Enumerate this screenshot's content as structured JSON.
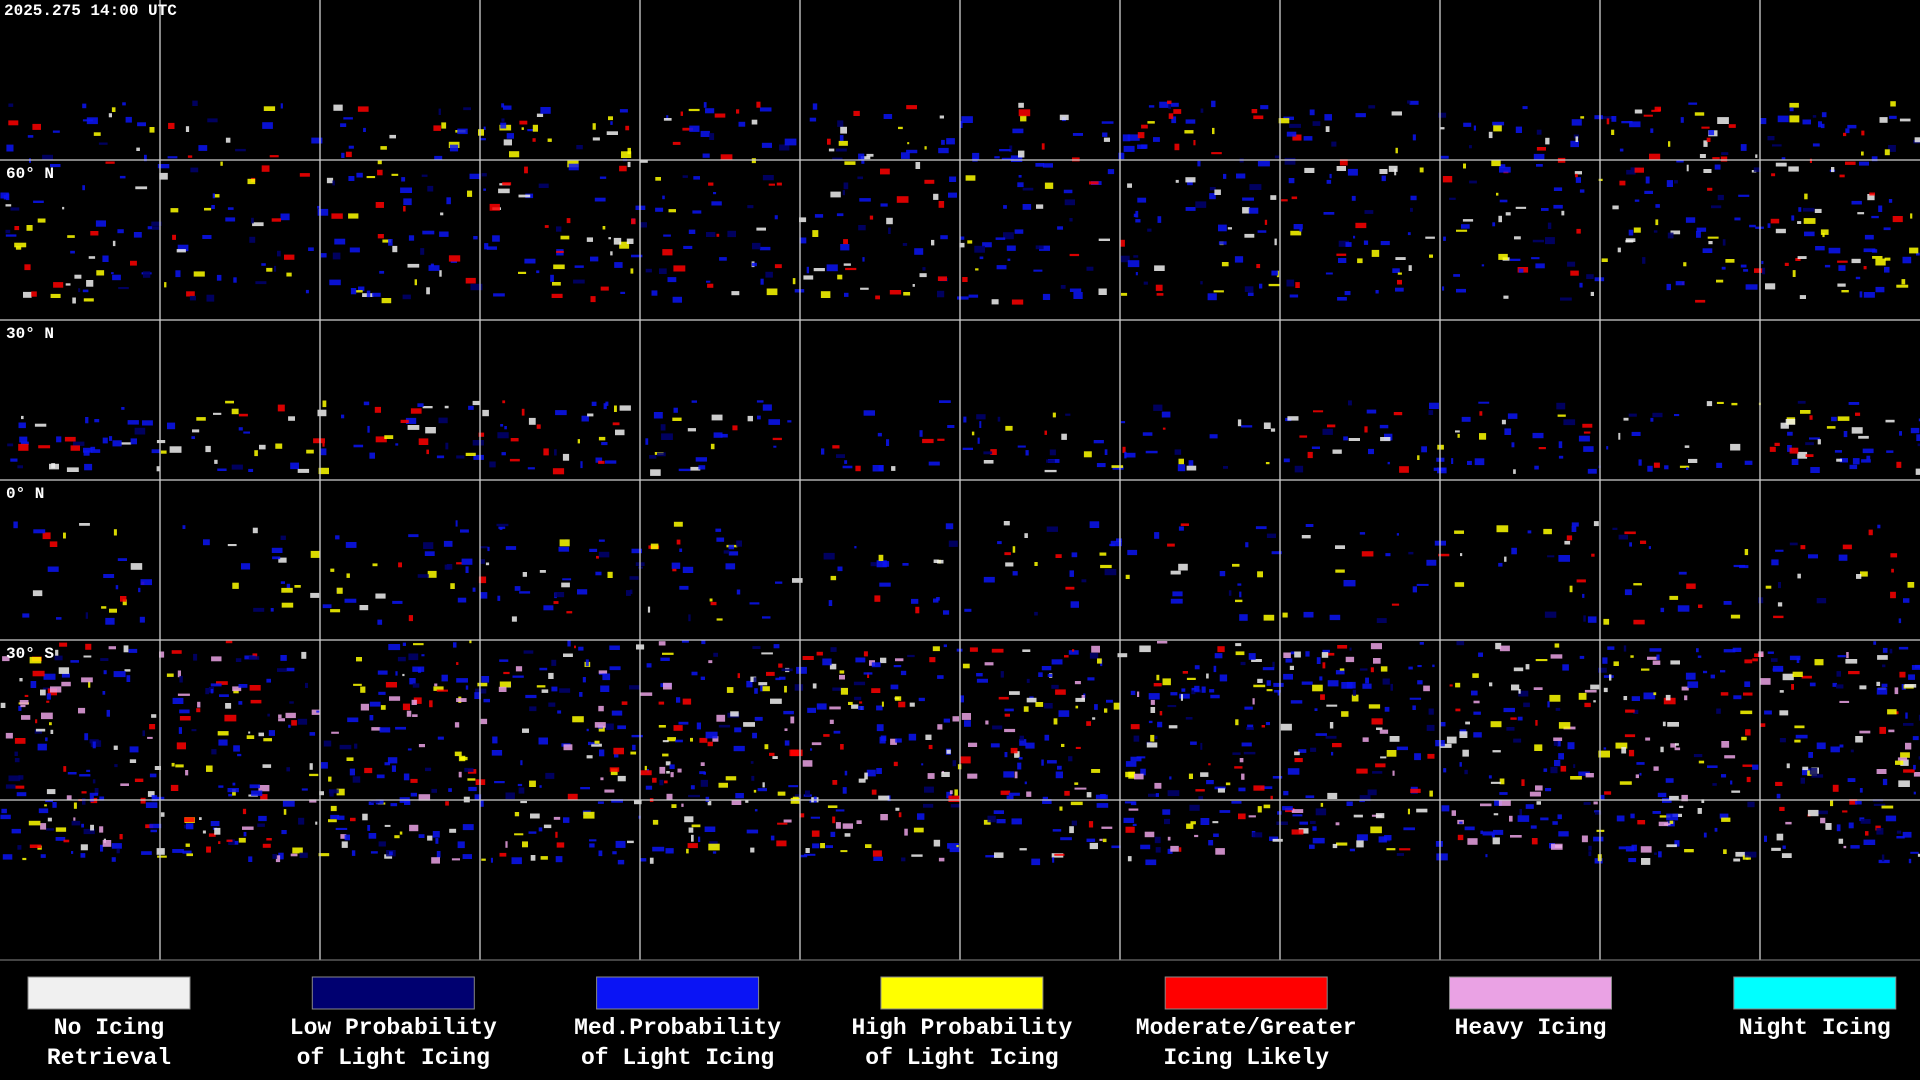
{
  "header": {
    "title": "2025.275 14:00 UTC"
  },
  "map": {
    "latitude_labels": [
      "60° N",
      "30° N",
      "0° N",
      "30° S"
    ]
  },
  "legend": {
    "items": [
      {
        "lines": [
          "No Icing",
          "Retrieval"
        ],
        "color": "#f0f0f0"
      },
      {
        "lines": [
          "Low Probability",
          "of Light Icing"
        ],
        "color": "#000070"
      },
      {
        "lines": [
          "Med.Probability",
          "of Light Icing"
        ],
        "color": "#0a14f5"
      },
      {
        "lines": [
          "High Probability",
          "of Light Icing"
        ],
        "color": "#ffff00"
      },
      {
        "lines": [
          "Moderate/Greater",
          "Icing Likely"
        ],
        "color": "#ff0000"
      },
      {
        "lines": [
          "Heavy Icing"
        ],
        "color": "#eaa2e4"
      },
      {
        "lines": [
          "Night Icing"
        ],
        "color": "#00ffff"
      }
    ]
  }
}
